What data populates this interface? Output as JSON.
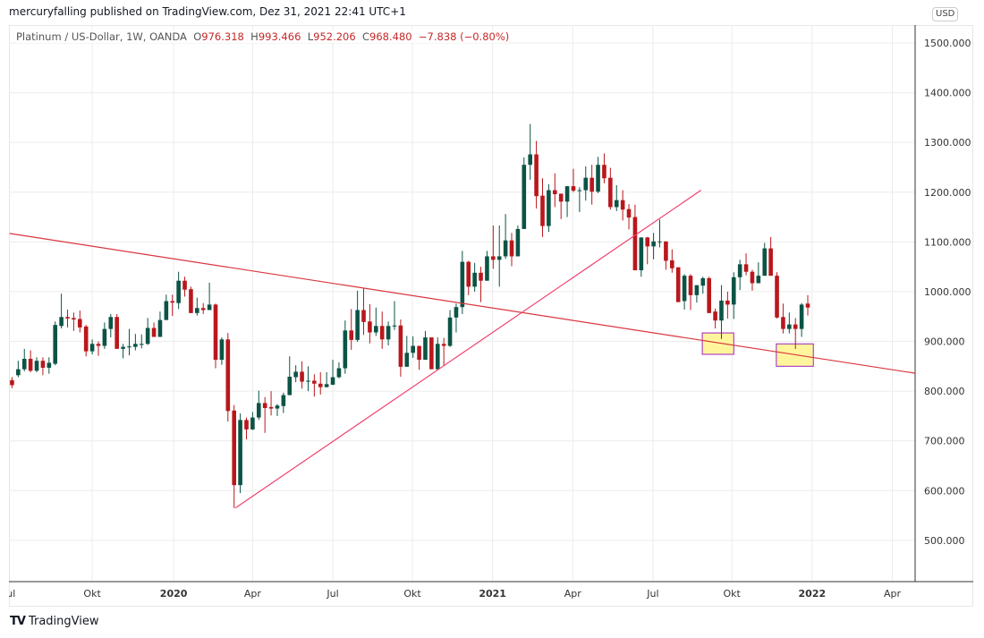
{
  "published_line": "mercuryfalling published on TradingView.com, Dez 31, 2021 22:41 UTC+1",
  "legend": {
    "symbol": "Platinum / US-Dollar, 1W, OANDA",
    "open_label": "O",
    "open": "976.318",
    "high_label": "H",
    "high": "993.466",
    "low_label": "L",
    "low": "952.206",
    "close_label": "C",
    "close": "968.480",
    "change": "−7.838 (−0.80%)"
  },
  "currency_badge": "USD",
  "logo_text": "TradingView",
  "logo_mark": "TV",
  "colors": {
    "up": "#0b5445",
    "down": "#b9171c",
    "trend1": "#d9363e",
    "trend2": "#f0426e",
    "box_fill": "#fff59d",
    "box_border": "#a020c0"
  },
  "chart_data": {
    "type": "candlestick",
    "title": "Platinum / US-Dollar, 1W, OANDA",
    "x_unit": "week index (0 = early Jul 2019, 129 = week of Dec 27 2021)",
    "ylim": [
      417,
      1536
    ],
    "xlim": [
      -0.5,
      146.4
    ],
    "grid": true,
    "y_ticks": [
      "500.000",
      "600.000",
      "700.000",
      "800.000",
      "900.000",
      "1000.000",
      "1100.000",
      "1200.000",
      "1300.000",
      "1400.000",
      "1500.000"
    ],
    "x_ticks": [
      {
        "label": "Jul",
        "at": -0.4,
        "bold": false
      },
      {
        "label": "Okt",
        "at": 13.0,
        "bold": false
      },
      {
        "label": "2020",
        "at": 26.2,
        "bold": true
      },
      {
        "label": "Apr",
        "at": 39.0,
        "bold": false
      },
      {
        "label": "Jul",
        "at": 52.0,
        "bold": false
      },
      {
        "label": "Okt",
        "at": 64.9,
        "bold": false
      },
      {
        "label": "2021",
        "at": 77.9,
        "bold": true
      },
      {
        "label": "Apr",
        "at": 90.9,
        "bold": false
      },
      {
        "label": "Jul",
        "at": 103.9,
        "bold": false
      },
      {
        "label": "Okt",
        "at": 116.7,
        "bold": false
      },
      {
        "label": "2022",
        "at": 129.7,
        "bold": true
      },
      {
        "label": "Apr",
        "at": 142.7,
        "bold": false
      }
    ],
    "candles_ohlc": [
      [
        822,
        828,
        806,
        812
      ],
      [
        832,
        861,
        828,
        844
      ],
      [
        844,
        885,
        840,
        865
      ],
      [
        865,
        882,
        838,
        841
      ],
      [
        841,
        868,
        838,
        861
      ],
      [
        861,
        868,
        832,
        847
      ],
      [
        847,
        868,
        835,
        857
      ],
      [
        855,
        940,
        852,
        933
      ],
      [
        931,
        996,
        926,
        949
      ],
      [
        949,
        964,
        928,
        946
      ],
      [
        947,
        958,
        921,
        944
      ],
      [
        945,
        962,
        918,
        928
      ],
      [
        930,
        933,
        870,
        880
      ],
      [
        880,
        904,
        874,
        895
      ],
      [
        895,
        900,
        871,
        891
      ],
      [
        891,
        938,
        885,
        925
      ],
      [
        925,
        955,
        908,
        949
      ],
      [
        949,
        955,
        885,
        885
      ],
      [
        885,
        895,
        866,
        889
      ],
      [
        888,
        925,
        872,
        890
      ],
      [
        889,
        915,
        882,
        895
      ],
      [
        893,
        914,
        886,
        895
      ],
      [
        895,
        947,
        893,
        927
      ],
      [
        927,
        938,
        909,
        909
      ],
      [
        909,
        960,
        909,
        943
      ],
      [
        943,
        994,
        943,
        981
      ],
      [
        981,
        994,
        951,
        978
      ],
      [
        977,
        1040,
        965,
        1022
      ],
      [
        1022,
        1030,
        990,
        1004
      ],
      [
        1005,
        1010,
        957,
        957
      ],
      [
        957,
        988,
        952,
        967
      ],
      [
        967,
        977,
        955,
        963
      ],
      [
        963,
        1018,
        963,
        974
      ],
      [
        974,
        976,
        846,
        863
      ],
      [
        863,
        908,
        853,
        904
      ],
      [
        904,
        917,
        739,
        760
      ],
      [
        761,
        772,
        565,
        611
      ],
      [
        611,
        755,
        595,
        742
      ],
      [
        742,
        747,
        703,
        723
      ],
      [
        723,
        758,
        722,
        747
      ],
      [
        747,
        801,
        742,
        776
      ],
      [
        776,
        788,
        716,
        766
      ],
      [
        768,
        800,
        751,
        765
      ],
      [
        765,
        774,
        750,
        771
      ],
      [
        770,
        797,
        756,
        792
      ],
      [
        792,
        870,
        792,
        829
      ],
      [
        828,
        852,
        818,
        839
      ],
      [
        839,
        860,
        805,
        819
      ],
      [
        819,
        850,
        800,
        821
      ],
      [
        821,
        834,
        789,
        815
      ],
      [
        815,
        838,
        793,
        808
      ],
      [
        808,
        838,
        808,
        814
      ],
      [
        813,
        863,
        812,
        828
      ],
      [
        828,
        858,
        826,
        846
      ],
      [
        846,
        942,
        835,
        922
      ],
      [
        922,
        965,
        883,
        903
      ],
      [
        903,
        1002,
        899,
        963
      ],
      [
        963,
        1007,
        913,
        939
      ],
      [
        940,
        975,
        896,
        918
      ],
      [
        918,
        968,
        911,
        931
      ],
      [
        931,
        960,
        885,
        904
      ],
      [
        904,
        940,
        892,
        931
      ],
      [
        930,
        981,
        923,
        932
      ],
      [
        932,
        944,
        829,
        849
      ],
      [
        849,
        911,
        849,
        877
      ],
      [
        877,
        910,
        867,
        891
      ],
      [
        891,
        891,
        843,
        863
      ],
      [
        863,
        921,
        863,
        908
      ],
      [
        908,
        908,
        844,
        844
      ],
      [
        844,
        908,
        842,
        895
      ],
      [
        895,
        907,
        852,
        891
      ],
      [
        891,
        963,
        889,
        948
      ],
      [
        948,
        976,
        918,
        969
      ],
      [
        969,
        1082,
        955,
        1060
      ],
      [
        1060,
        1062,
        993,
        1010
      ],
      [
        1010,
        1058,
        1000,
        1038
      ],
      [
        1038,
        1050,
        979,
        1022
      ],
      [
        1022,
        1082,
        1022,
        1071
      ],
      [
        1071,
        1133,
        1046,
        1064
      ],
      [
        1064,
        1133,
        1010,
        1071
      ],
      [
        1071,
        1156,
        1066,
        1103
      ],
      [
        1103,
        1118,
        1051,
        1071
      ],
      [
        1071,
        1133,
        1071,
        1126
      ],
      [
        1126,
        1270,
        1126,
        1255
      ],
      [
        1255,
        1337,
        1225,
        1276
      ],
      [
        1276,
        1303,
        1167,
        1192
      ],
      [
        1193,
        1228,
        1110,
        1132
      ],
      [
        1132,
        1216,
        1120,
        1204
      ],
      [
        1204,
        1238,
        1170,
        1196
      ],
      [
        1197,
        1197,
        1146,
        1181
      ],
      [
        1181,
        1212,
        1150,
        1212
      ],
      [
        1212,
        1247,
        1200,
        1203
      ],
      [
        1203,
        1210,
        1160,
        1204
      ],
      [
        1204,
        1252,
        1183,
        1229
      ],
      [
        1229,
        1255,
        1175,
        1201
      ],
      [
        1201,
        1271,
        1198,
        1255
      ],
      [
        1255,
        1278,
        1218,
        1228
      ],
      [
        1229,
        1249,
        1165,
        1170
      ],
      [
        1170,
        1214,
        1162,
        1184
      ],
      [
        1184,
        1204,
        1143,
        1165
      ],
      [
        1166,
        1176,
        1125,
        1149
      ],
      [
        1150,
        1175,
        1043,
        1043
      ],
      [
        1043,
        1109,
        1030,
        1109
      ],
      [
        1109,
        1110,
        1055,
        1091
      ],
      [
        1091,
        1118,
        1065,
        1101
      ],
      [
        1100,
        1145,
        1089,
        1101
      ],
      [
        1101,
        1101,
        1044,
        1062
      ],
      [
        1063,
        1085,
        1038,
        1047
      ],
      [
        1049,
        1049,
        979,
        979
      ],
      [
        981,
        1035,
        964,
        1032
      ],
      [
        1032,
        1035,
        963,
        993
      ],
      [
        993,
        1013,
        978,
        1013
      ],
      [
        1012,
        1030,
        996,
        1027
      ],
      [
        1027,
        1030,
        957,
        957
      ],
      [
        960,
        966,
        926,
        942
      ],
      [
        942,
        1013,
        905,
        982
      ],
      [
        982,
        1000,
        946,
        974
      ],
      [
        974,
        1039,
        945,
        1029
      ],
      [
        1029,
        1064,
        1003,
        1055
      ],
      [
        1055,
        1077,
        1033,
        1040
      ],
      [
        1040,
        1044,
        1002,
        1017
      ],
      [
        1017,
        1059,
        1017,
        1032
      ],
      [
        1032,
        1098,
        1032,
        1087
      ],
      [
        1087,
        1110,
        1032,
        1032
      ],
      [
        1032,
        1039,
        946,
        948
      ],
      [
        949,
        976,
        916,
        925
      ],
      [
        925,
        958,
        916,
        934
      ],
      [
        934,
        947,
        885,
        925
      ],
      [
        925,
        977,
        909,
        974
      ],
      [
        976,
        993,
        952,
        968
      ]
    ],
    "trendlines": [
      {
        "name": "descending-resistance",
        "from": [
          -0.4,
          1117
        ],
        "to": [
          146.4,
          836
        ]
      },
      {
        "name": "ascending-support",
        "from": [
          36.2,
          565
        ],
        "to": [
          111.7,
          1204
        ]
      }
    ],
    "highlight_boxes": [
      {
        "x": [
          111.9,
          117.0
        ],
        "y": [
          874,
          917
        ]
      },
      {
        "x": [
          123.9,
          129.9
        ],
        "y": [
          850,
          895
        ]
      }
    ]
  }
}
